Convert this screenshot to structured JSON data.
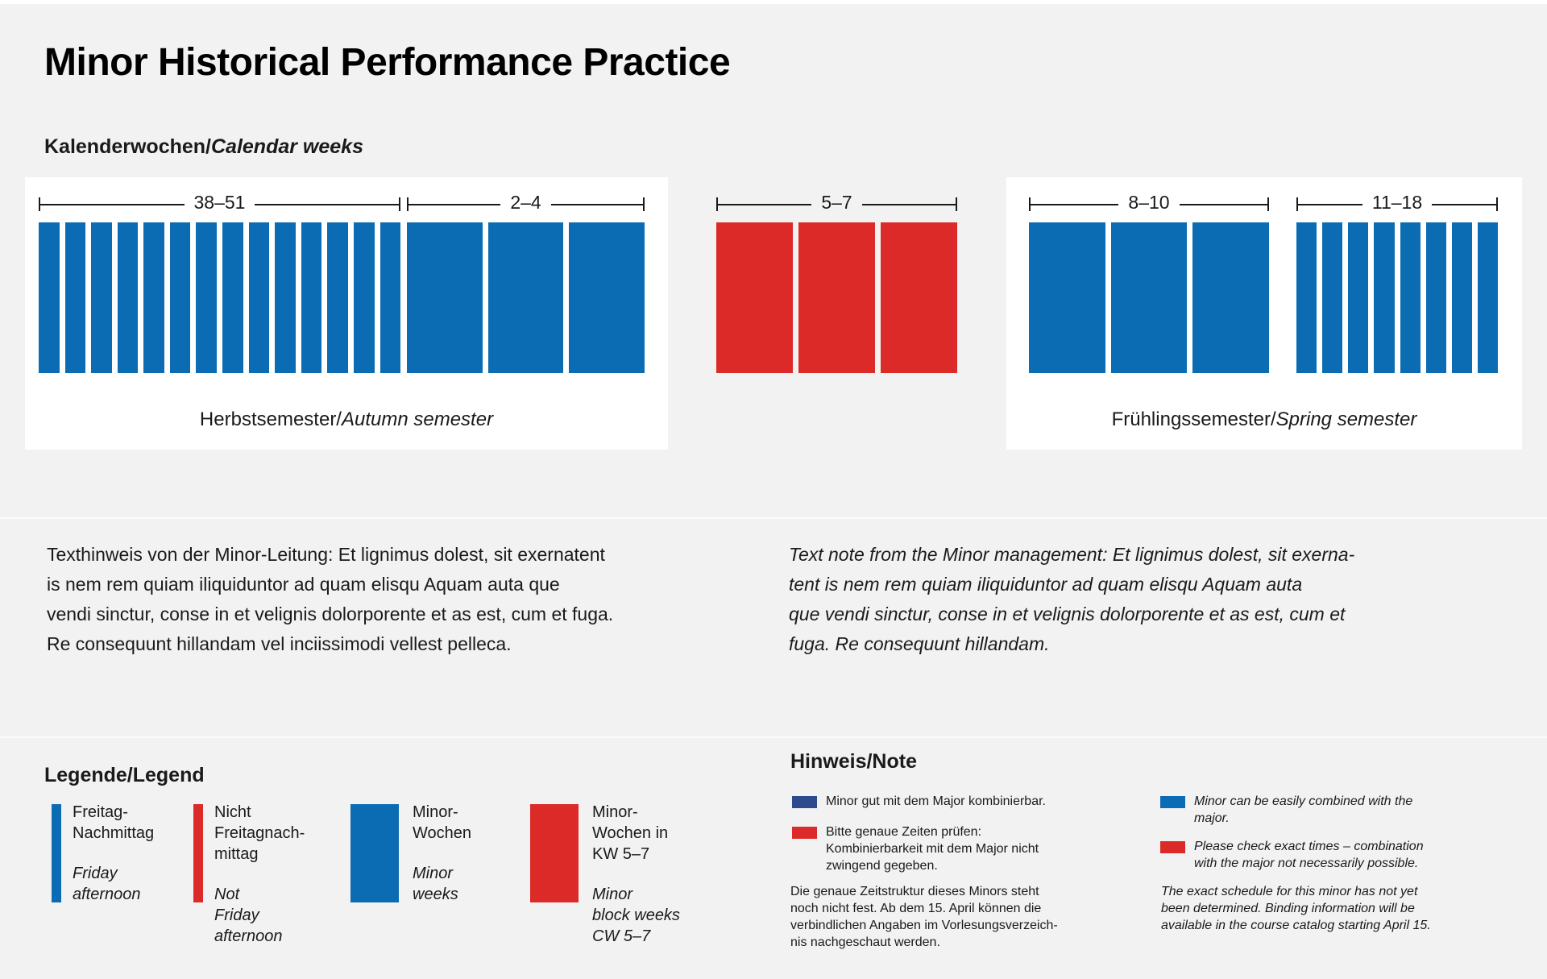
{
  "header": {
    "title": "Minor Historical Performance Practice"
  },
  "calendar": {
    "label_de": "Kalenderwochen/",
    "label_en": "Calendar weeks",
    "groups": [
      {
        "id": "weeks-38-51",
        "label": "38–51",
        "color": "blue",
        "weeks": 14
      },
      {
        "id": "weeks-2-4",
        "label": "2–4",
        "color": "blue",
        "weeks": 3
      },
      {
        "id": "weeks-5-7",
        "label": "5–7",
        "color": "red",
        "weeks": 3
      },
      {
        "id": "weeks-8-10",
        "label": "8–10",
        "color": "blue",
        "weeks": 3
      },
      {
        "id": "weeks-11-18",
        "label": "11–18",
        "color": "blue",
        "weeks": 8
      }
    ],
    "autumn": {
      "de": "Herbstsemester/",
      "en": "Autumn semester"
    },
    "spring": {
      "de": "Frühlingssemester/",
      "en": "Spring semester"
    }
  },
  "management_note": {
    "de_lines": [
      "Texthinweis von der Minor-Leitung: Et lignimus dolest, sit exernatent",
      "is nem rem quiam iliquiduntor ad quam elisqu Aquam auta que",
      "vendi sinctur, conse in et velignis dolorporente et as est, cum et fuga.",
      "Re consequunt hillandam vel inciissimodi vellest pelleca."
    ],
    "en_lines": [
      "Text note from the Minor management: Et lignimus dolest, sit exerna-",
      "tent is nem rem quiam iliquiduntor ad quam elisqu Aquam auta",
      "que vendi sinctur, conse in et velignis dolorporente et as est, cum et",
      "fuga. Re consequunt hillandam."
    ]
  },
  "legend": {
    "heading": "Legende/Legend",
    "items": [
      {
        "name": "friday-afternoon",
        "swatch": "thin-blue",
        "de_lines": [
          "Freitag-",
          "Nachmittag"
        ],
        "en_lines": [
          "Friday",
          "afternoon"
        ]
      },
      {
        "name": "not-friday-afternoon",
        "swatch": "thin-red",
        "de_lines": [
          "Nicht",
          "Freitagnach-",
          "mittag"
        ],
        "en_lines": [
          "Not",
          "Friday",
          "afternoon"
        ]
      },
      {
        "name": "minor-weeks",
        "swatch": "wide-blue",
        "de_lines": [
          "Minor-",
          "Wochen"
        ],
        "en_lines": [
          "Minor",
          "weeks"
        ]
      },
      {
        "name": "minor-block-weeks",
        "swatch": "wide-red",
        "de_lines": [
          "Minor-",
          "Wochen in",
          "KW 5–7"
        ],
        "en_lines": [
          "Minor",
          "block weeks",
          "CW 5–7"
        ]
      }
    ]
  },
  "note_section": {
    "heading": "Hinweis/Note",
    "de": {
      "bullets": [
        {
          "color": "navy",
          "lines": [
            "Minor gut mit dem Major kombinierbar."
          ]
        },
        {
          "color": "red",
          "lines": [
            "Bitte genaue Zeiten prüfen:",
            "Kombinierbarkeit mit dem Major nicht",
            "zwingend gegeben."
          ]
        }
      ],
      "paragraph_lines": [
        "Die genaue Zeitstruktur dieses Minors steht",
        "noch nicht fest. Ab dem 15. April können die",
        "verbindlichen Angaben im Vorlesungsverzeich-",
        "nis nachgeschaut werden."
      ]
    },
    "en": {
      "bullets": [
        {
          "color": "blue",
          "lines": [
            "Minor can be easily combined with the",
            "major."
          ]
        },
        {
          "color": "red",
          "lines": [
            "Please check exact times – combination",
            "with the major not necessarily possible."
          ]
        }
      ],
      "paragraph_lines": [
        "The exact schedule for this minor has not yet",
        "been determined. Binding information will be",
        "available in the course catalog starting April 15."
      ]
    }
  },
  "colors": {
    "background": "#f2f2f2",
    "card": "#ffffff",
    "week_blue": "#0c6cb3",
    "week_red": "#dc2a28",
    "navy": "#2c4a8c",
    "text": "#1a1a1a"
  }
}
